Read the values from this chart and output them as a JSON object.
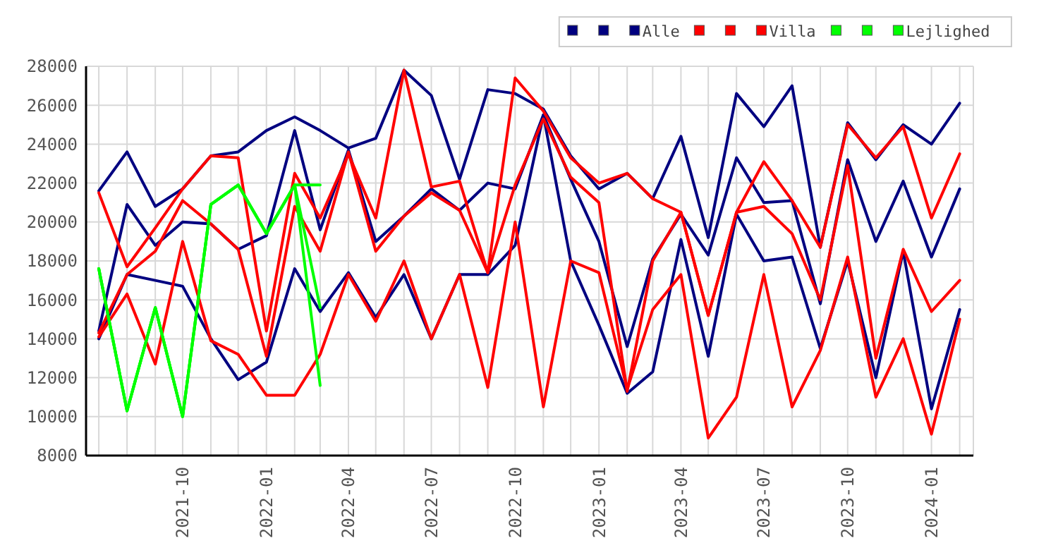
{
  "chart_data": {
    "type": "line",
    "x": [
      "2021-07",
      "2021-08",
      "2021-09",
      "2021-10",
      "2021-11",
      "2021-12",
      "2022-01",
      "2022-02",
      "2022-03",
      "2022-04",
      "2022-05",
      "2022-06",
      "2022-07",
      "2022-08",
      "2022-09",
      "2022-10",
      "2022-11",
      "2022-12",
      "2023-01",
      "2023-02",
      "2023-03",
      "2023-04",
      "2023-05",
      "2023-06",
      "2023-07",
      "2023-08",
      "2023-09",
      "2023-10",
      "2023-11",
      "2023-12",
      "2024-01",
      "2024-02"
    ],
    "xlim": [
      "2021-06-17",
      "2024-02-16"
    ],
    "xticks": [
      {
        "value": "2021-07",
        "label": null
      },
      {
        "value": "2021-08",
        "label": null
      },
      {
        "value": "2021-09",
        "label": null
      },
      "2021-10",
      {
        "value": "2021-11",
        "label": null
      },
      {
        "value": "2021-12",
        "label": null
      },
      "2022-01",
      {
        "value": "2022-02",
        "label": null
      },
      {
        "value": "2022-03",
        "label": null
      },
      "2022-04",
      {
        "value": "2022-05",
        "label": null
      },
      {
        "value": "2022-06",
        "label": null
      },
      "2022-07",
      {
        "value": "2022-08",
        "label": null
      },
      {
        "value": "2022-09",
        "label": null
      },
      "2022-10",
      {
        "value": "2022-11",
        "label": null
      },
      {
        "value": "2022-12",
        "label": null
      },
      "2023-01",
      {
        "value": "2023-02",
        "label": null
      },
      {
        "value": "2023-03",
        "label": null
      },
      "2023-04",
      {
        "value": "2023-05",
        "label": null
      },
      {
        "value": "2023-06",
        "label": null
      },
      "2023-07",
      {
        "value": "2023-08",
        "label": null
      },
      {
        "value": "2023-09",
        "label": null
      },
      "2023-10",
      {
        "value": "2023-11",
        "label": null
      },
      {
        "value": "2023-12",
        "label": null
      },
      "2024-01",
      {
        "value": "2024-02",
        "label": null
      }
    ],
    "ylim": [
      8000,
      28000
    ],
    "yticks": [
      8000,
      10000,
      12000,
      14000,
      16000,
      18000,
      20000,
      22000,
      24000,
      26000,
      28000
    ],
    "grid": true,
    "legend": "top right",
    "series": [
      {
        "color": "#000080",
        "values": [
          21600,
          23600,
          20800,
          21700,
          23400,
          23600,
          24700,
          25400,
          24700,
          23800,
          24300,
          27800,
          26500,
          22200,
          26800,
          26600,
          25800,
          23400,
          21700,
          22500,
          21200,
          24400,
          19200,
          26600,
          24900,
          27000,
          18700,
          25100,
          23200,
          25000,
          24000,
          26100
        ]
      },
      {
        "color": "#000080",
        "values": [
          14400,
          20900,
          18800,
          20000,
          19900,
          18600,
          19300,
          24700,
          19600,
          23700,
          19000,
          20300,
          21700,
          20600,
          22000,
          21700,
          25500,
          22200,
          19000,
          13600,
          18100,
          20400,
          18300,
          23300,
          21000,
          21100,
          15800,
          23200,
          19000,
          22100,
          18200,
          21700
        ]
      },
      {
        "name": "Alle",
        "color": "#000080",
        "values": [
          14000,
          17300,
          17000,
          16700,
          14000,
          11900,
          12800,
          17600,
          15400,
          17400,
          15100,
          17300,
          14000,
          17300,
          17300,
          18800,
          25500,
          18000,
          14700,
          11200,
          12300,
          19100,
          13100,
          20400,
          18000,
          18200,
          13500,
          18000,
          12000,
          18500,
          10400,
          15500
        ]
      },
      {
        "color": "#ff0000",
        "values": [
          21500,
          17700,
          19700,
          21700,
          23400,
          23300,
          14400,
          22500,
          20200,
          23500,
          20200,
          27800,
          21800,
          22100,
          17400,
          27400,
          25700,
          23300,
          22000,
          22500,
          21200,
          20500,
          15200,
          20500,
          23100,
          21100,
          18700,
          25000,
          23300,
          24900,
          20200,
          23500
        ]
      },
      {
        "color": "#ff0000",
        "values": [
          14300,
          17300,
          18500,
          21100,
          19900,
          18600,
          13100,
          20800,
          18500,
          23600,
          18500,
          20300,
          21500,
          20600,
          17400,
          21900,
          25300,
          22300,
          21000,
          11300,
          18000,
          20500,
          15200,
          20500,
          20800,
          19400,
          16000,
          22900,
          13000,
          18600,
          15400,
          17000
        ]
      },
      {
        "name": "Villa",
        "color": "#ff0000",
        "values": [
          14100,
          16300,
          12700,
          19000,
          13900,
          13200,
          11100,
          11100,
          13200,
          17300,
          14900,
          18000,
          14000,
          17300,
          11500,
          20000,
          10500,
          18000,
          17400,
          11400,
          15500,
          17300,
          8900,
          11000,
          17300,
          10500,
          13400,
          18200,
          11000,
          14000,
          9100,
          15000
        ]
      },
      {
        "color": "#00ff00",
        "values": [
          17600,
          10300,
          15600,
          10000,
          20900,
          21900,
          19400,
          21900,
          21900,
          null,
          null,
          null,
          null,
          null,
          null,
          null,
          null,
          null,
          null,
          null,
          null,
          null,
          null,
          null,
          null,
          null,
          null,
          null,
          null,
          null,
          null,
          null
        ]
      },
      {
        "color": "#00ff00",
        "values": [
          17600,
          10300,
          15600,
          10000,
          20900,
          21900,
          19400,
          21900,
          15600,
          null,
          null,
          null,
          null,
          null,
          null,
          null,
          null,
          null,
          null,
          null,
          null,
          null,
          null,
          null,
          null,
          null,
          null,
          null,
          null,
          null,
          null,
          null
        ]
      },
      {
        "name": "Lejlighed",
        "color": "#00ff00",
        "values": [
          17600,
          10300,
          15600,
          10000,
          20900,
          21900,
          19400,
          21900,
          11600,
          null,
          null,
          null,
          null,
          null,
          null,
          null,
          null,
          null,
          null,
          null,
          null,
          null,
          null,
          null,
          null,
          null,
          null,
          null,
          null,
          null,
          null,
          null
        ]
      }
    ]
  }
}
